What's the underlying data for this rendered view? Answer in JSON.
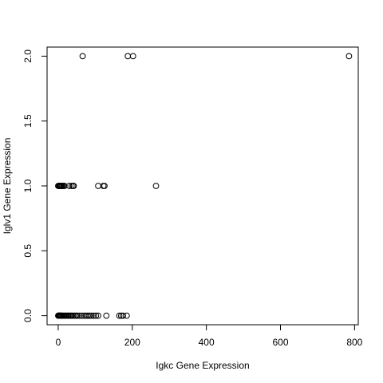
{
  "chart_data": {
    "type": "scatter",
    "title": "",
    "xlabel": "Igkc Gene Expression",
    "ylabel": "Iglv1  Gene Expression",
    "xlim": [
      -30,
      810
    ],
    "ylim": [
      -0.07,
      2.07
    ],
    "xticks": [
      0,
      200,
      400,
      600,
      800
    ],
    "yticks": [
      0.0,
      0.5,
      1.0,
      1.5,
      2.0
    ],
    "xtick_labels": [
      "0",
      "200",
      "400",
      "600",
      "800"
    ],
    "ytick_labels": [
      "0.0",
      "0.5",
      "1.0",
      "1.5",
      "2.0"
    ],
    "marker": "open-circle",
    "grid": false,
    "x": [
      66,
      188,
      202,
      785,
      0,
      2,
      4,
      5,
      7,
      9,
      11,
      14,
      17,
      30,
      36,
      40,
      42,
      108,
      122,
      125,
      264,
      0,
      1,
      2,
      3,
      4,
      5,
      6,
      8,
      10,
      12,
      15,
      18,
      21,
      24,
      27,
      30,
      33,
      36,
      40,
      44,
      48,
      52,
      58,
      64,
      70,
      75,
      80,
      85,
      90,
      96,
      102,
      108,
      130,
      165,
      170,
      175,
      185
    ],
    "y": [
      2,
      2,
      2,
      2,
      1,
      1,
      1,
      1,
      1,
      1,
      1,
      1,
      1,
      1,
      1,
      1,
      1,
      1,
      1,
      1,
      1,
      0,
      0,
      0,
      0,
      0,
      0,
      0,
      0,
      0,
      0,
      0,
      0,
      0,
      0,
      0,
      0,
      0,
      0,
      0,
      0,
      0,
      0,
      0,
      0,
      0,
      0,
      0,
      0,
      0,
      0,
      0,
      0,
      0,
      0,
      0,
      0,
      0
    ]
  }
}
